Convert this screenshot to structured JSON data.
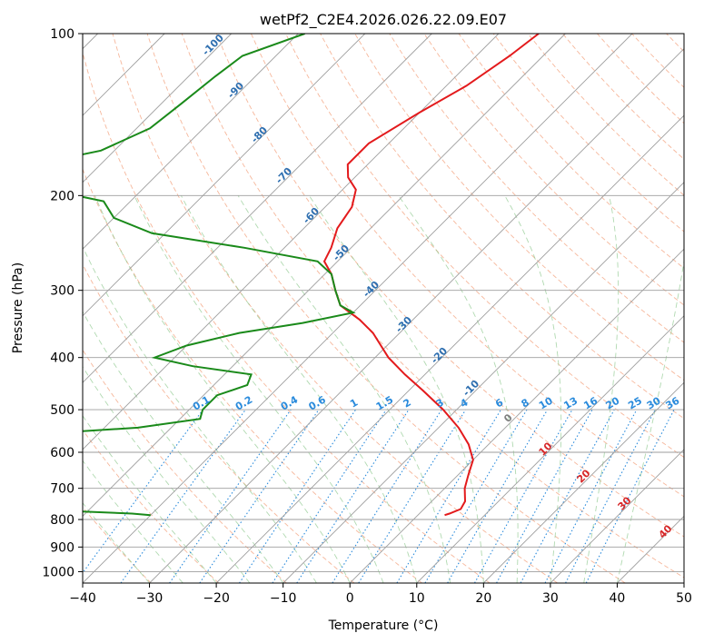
{
  "chart_data": {
    "type": "line",
    "subtype": "skew-t log-p diagram",
    "title": "wetPf2_C2E4.2026.026.22.09.E07",
    "xlabel": "Temperature (°C)",
    "ylabel": "Pressure (hPa)",
    "xlim": [
      -40,
      50
    ],
    "ylim": [
      1050,
      100
    ],
    "x_ticks": [
      -40,
      -30,
      -20,
      -10,
      0,
      10,
      20,
      30,
      40,
      50
    ],
    "y_ticks": [
      100,
      200,
      300,
      400,
      500,
      600,
      700,
      800,
      900,
      1000
    ],
    "grid": true,
    "series": [
      {
        "name": "Temperature",
        "color": "#e31a1c",
        "points": [
          {
            "p": 100,
            "t": -54
          },
          {
            "p": 110,
            "t": -55
          },
          {
            "p": 125,
            "t": -57
          },
          {
            "p": 140,
            "t": -60
          },
          {
            "p": 160,
            "t": -63
          },
          {
            "p": 175,
            "t": -63
          },
          {
            "p": 185,
            "t": -61
          },
          {
            "p": 195,
            "t": -58
          },
          {
            "p": 210,
            "t": -56
          },
          {
            "p": 230,
            "t": -55
          },
          {
            "p": 250,
            "t": -53
          },
          {
            "p": 265,
            "t": -52
          },
          {
            "p": 280,
            "t": -49
          },
          {
            "p": 300,
            "t": -46
          },
          {
            "p": 320,
            "t": -43
          },
          {
            "p": 340,
            "t": -38
          },
          {
            "p": 360,
            "t": -34
          },
          {
            "p": 400,
            "t": -28
          },
          {
            "p": 430,
            "t": -23
          },
          {
            "p": 460,
            "t": -18
          },
          {
            "p": 500,
            "t": -12
          },
          {
            "p": 540,
            "t": -7
          },
          {
            "p": 580,
            "t": -3
          },
          {
            "p": 620,
            "t": 0
          },
          {
            "p": 660,
            "t": 1.5
          },
          {
            "p": 700,
            "t": 3
          },
          {
            "p": 740,
            "t": 5
          },
          {
            "p": 765,
            "t": 5.5
          },
          {
            "p": 780,
            "t": 4.5
          },
          {
            "p": 785,
            "t": 4
          }
        ]
      },
      {
        "name": "Dewpoint",
        "color": "#1a8a1a",
        "points": [
          {
            "p": 100,
            "t": -89
          },
          {
            "p": 110,
            "t": -95
          },
          {
            "p": 120,
            "t": -96
          },
          {
            "p": 135,
            "t": -97
          },
          {
            "p": 150,
            "t": -98
          },
          {
            "p": 165,
            "t": -102
          },
          {
            "p": 178,
            "t": -112
          },
          {
            "p": 185,
            "t": -120
          },
          {
            "p": 195,
            "t": -104
          },
          {
            "p": 205,
            "t": -94
          },
          {
            "p": 220,
            "t": -90
          },
          {
            "p": 235,
            "t": -82
          },
          {
            "p": 250,
            "t": -66
          },
          {
            "p": 265,
            "t": -53
          },
          {
            "p": 280,
            "t": -49
          },
          {
            "p": 300,
            "t": -46
          },
          {
            "p": 320,
            "t": -43
          },
          {
            "p": 330,
            "t": -40
          },
          {
            "p": 345,
            "t": -46
          },
          {
            "p": 360,
            "t": -54
          },
          {
            "p": 380,
            "t": -60
          },
          {
            "p": 400,
            "t": -63
          },
          {
            "p": 415,
            "t": -56
          },
          {
            "p": 430,
            "t": -46
          },
          {
            "p": 450,
            "t": -45
          },
          {
            "p": 470,
            "t": -48
          },
          {
            "p": 500,
            "t": -48
          },
          {
            "p": 520,
            "t": -47
          },
          {
            "p": 540,
            "t": -55
          },
          {
            "p": 560,
            "t": -74
          },
          {
            "p": 580,
            "t": -82
          },
          {
            "p": 600,
            "t": -80
          },
          {
            "p": 625,
            "t": -82
          },
          {
            "p": 645,
            "t": -84
          },
          {
            "p": 665,
            "t": -80
          },
          {
            "p": 690,
            "t": -75
          },
          {
            "p": 710,
            "t": -72
          },
          {
            "p": 740,
            "t": -68
          },
          {
            "p": 765,
            "t": -60
          },
          {
            "p": 780,
            "t": -43
          },
          {
            "p": 785,
            "t": -40
          }
        ]
      }
    ],
    "annotations": {
      "dry_adiabat_labels": [
        "-100",
        "-90",
        "-80",
        "-70",
        "-60",
        "-50",
        "-40",
        "-30",
        "-20",
        "-10",
        "0",
        "10",
        "20",
        "30",
        "40"
      ],
      "mixing_ratio_labels": [
        "0.1",
        "0.2",
        "0.4",
        "0.6",
        "1",
        "1.5",
        "2",
        "3",
        "4",
        "6",
        "8",
        "10",
        "13",
        "16",
        "20",
        "25",
        "30",
        "36"
      ],
      "moist_adiabat_labels": [
        "10",
        "20",
        "30",
        "40"
      ]
    }
  }
}
